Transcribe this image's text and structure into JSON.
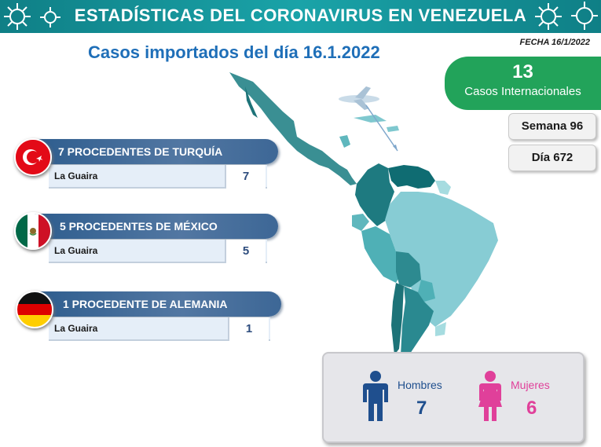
{
  "header": {
    "title": "ESTADÍSTICAS DEL CORONAVIRUS EN VENEZUELA",
    "date": "FECHA 16/1/2022"
  },
  "subtitle": "Casos importados del día 16.1.2022",
  "international": {
    "count": "13",
    "label": "Casos Internacionales"
  },
  "semana": "Semana 96",
  "dia": "Día 672",
  "origins": [
    {
      "heading": "7 PROCEDENTES DE TURQUÍA",
      "state": "La Guaira",
      "count": "7",
      "flag": "turkey-flag"
    },
    {
      "heading": "5 PROCEDENTES DE MÉXICO",
      "state": "La Guaira",
      "count": "5",
      "flag": "mexico-flag"
    },
    {
      "heading": "1 PROCEDENTE DE ALEMANIA",
      "state": "La Guaira",
      "count": "1",
      "flag": "germany-flag"
    }
  ],
  "gender": {
    "men_label": "Hombres",
    "men_count": "7",
    "women_label": "Mujeres",
    "women_count": "6"
  },
  "colors": {
    "banner": "#1aa3a8",
    "subtitle": "#1f6fb8",
    "international_badge": "#22a35a",
    "origin_bar": "#3d6796",
    "men": "#1f4f8e",
    "women": "#e0409a"
  }
}
